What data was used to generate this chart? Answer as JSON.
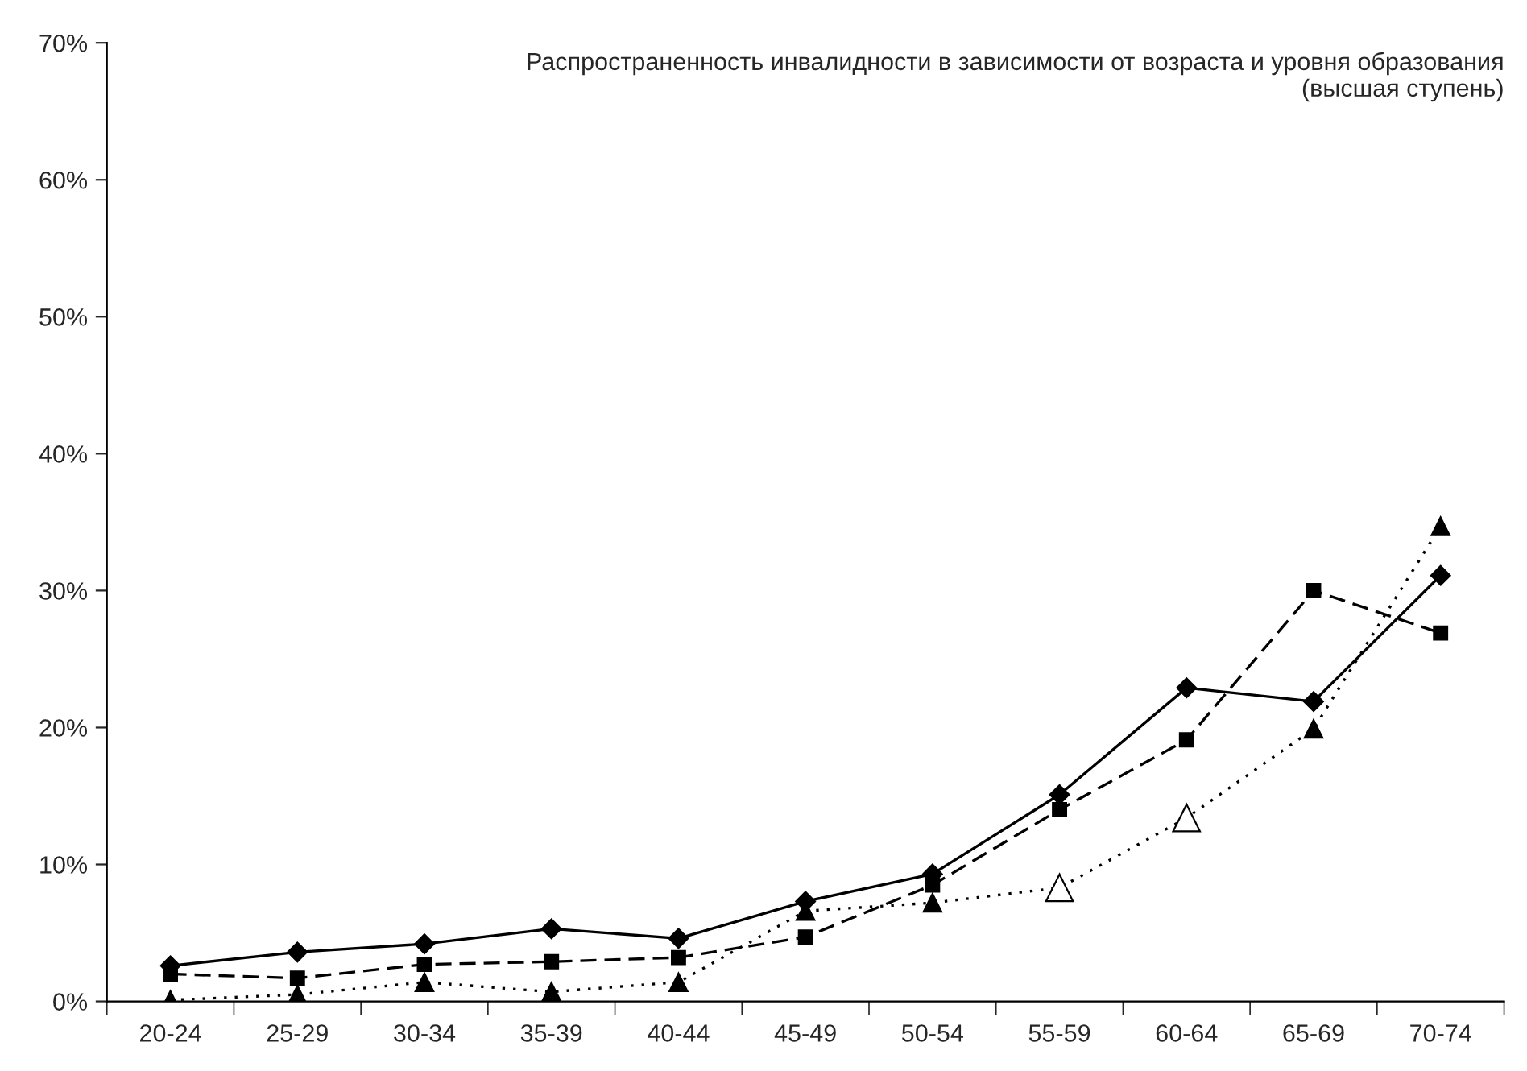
{
  "chart_data": {
    "type": "line",
    "title": "Распространенность инвалидности в зависимости от возраста и уровня образования\n(высшая ступень)",
    "categories": [
      "20-24",
      "25-29",
      "30-34",
      "35-39",
      "40-44",
      "45-49",
      "50-54",
      "55-59",
      "60-64",
      "65-69",
      "70-74"
    ],
    "series": [
      {
        "color": "#000000",
        "marker": "diamond",
        "line_style": "solid",
        "values": [
          0.026,
          0.036,
          0.042,
          0.053,
          0.046,
          0.073,
          0.093,
          0.151,
          0.229,
          0.219,
          0.311
        ]
      },
      {
        "color": "#000000",
        "marker": "square",
        "line_style": "dashed",
        "values": [
          0.02,
          0.017,
          0.027,
          0.029,
          0.032,
          0.047,
          0.085,
          0.14,
          0.191,
          0.3,
          0.269
        ]
      },
      {
        "color": "#000000",
        "marker": "triangle",
        "line_style": "dotted",
        "colors": [
          "#000000",
          "#000000",
          "#000000",
          "#000000",
          "#000000",
          "#000000",
          "#000000",
          "#ffffff",
          "#ffffff",
          "#000000",
          "#000000"
        ],
        "values": [
          0.001,
          0.005,
          0.014,
          0.007,
          0.014,
          0.066,
          0.072,
          0.083,
          0.134,
          0.199,
          0.347
        ]
      }
    ],
    "ylim": [
      0,
      0.7
    ],
    "yticks": [
      {
        "value": 0,
        "label": "0%"
      },
      {
        "value": 0.1,
        "label": "10%"
      },
      {
        "value": 0.2,
        "label": "20%"
      },
      {
        "value": 0.3,
        "label": "30%"
      },
      {
        "value": 0.4,
        "label": "40%"
      },
      {
        "value": 0.5,
        "label": "50%"
      },
      {
        "value": 0.6,
        "label": "60%"
      },
      {
        "value": 0.7,
        "label": "70%"
      }
    ],
    "grid": false,
    "legend": false
  }
}
